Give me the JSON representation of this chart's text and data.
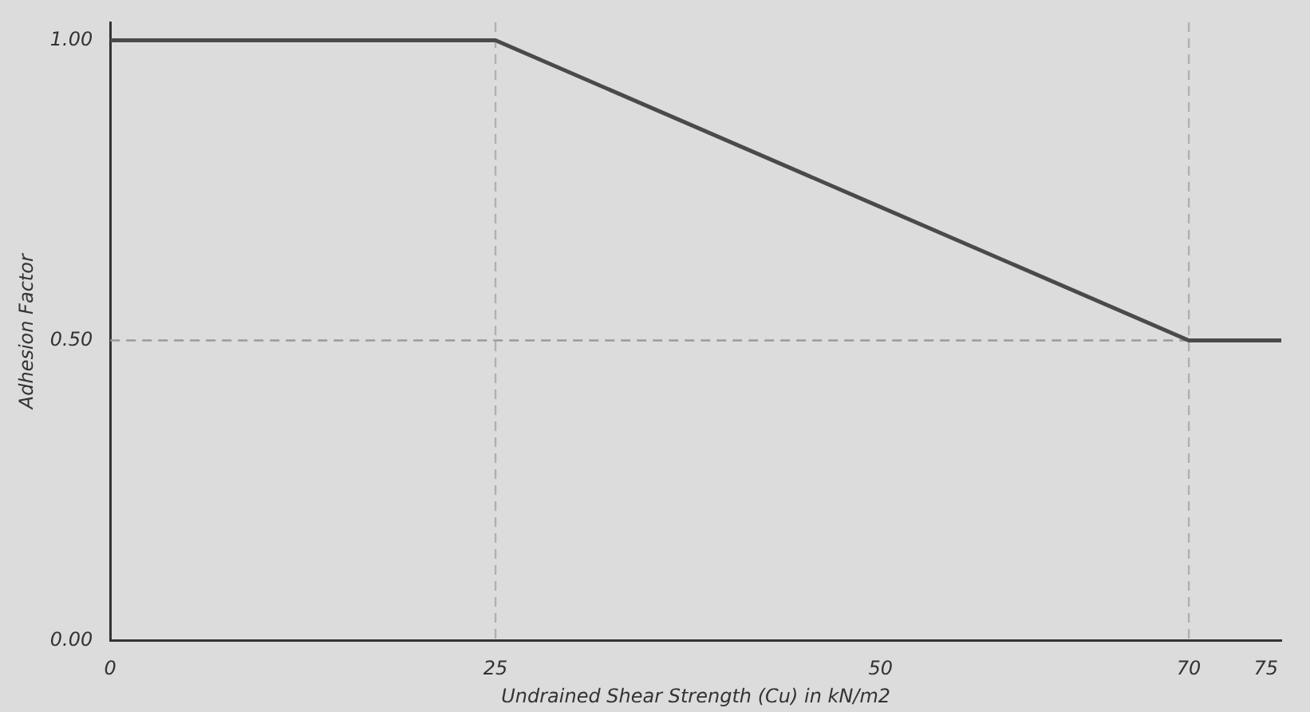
{
  "chart_data": {
    "type": "line",
    "xlabel": "Undrained Shear Strength (Cu) in kN/m2",
    "ylabel": "Adhesion Factor",
    "x": [
      0,
      25,
      70,
      76
    ],
    "series": [
      {
        "color": "#4a4a4a",
        "values": [
          1,
          1,
          0.5,
          0.5
        ]
      }
    ],
    "xlim": [
      0,
      76
    ],
    "xticks": [
      0,
      25,
      50,
      70,
      75
    ],
    "ylim": [
      0,
      1.03
    ],
    "yticks": [
      {
        "value": 0,
        "label": "0.00"
      },
      {
        "value": 0.5,
        "label": "0.50"
      },
      {
        "value": 1,
        "label": "1.00"
      }
    ],
    "ref_lines": [
      {
        "axis": "y",
        "value": 0.5,
        "color": "#9a9a9a",
        "line_style": "dashed"
      },
      {
        "axis": "x",
        "value": 25,
        "color": "#b0b0b0",
        "line_style": "dashed"
      },
      {
        "axis": "x",
        "value": 70,
        "color": "#b0b0b0",
        "line_style": "dashed"
      }
    ],
    "grid": false,
    "legend": false,
    "marker": "none",
    "line_style": "solid"
  }
}
